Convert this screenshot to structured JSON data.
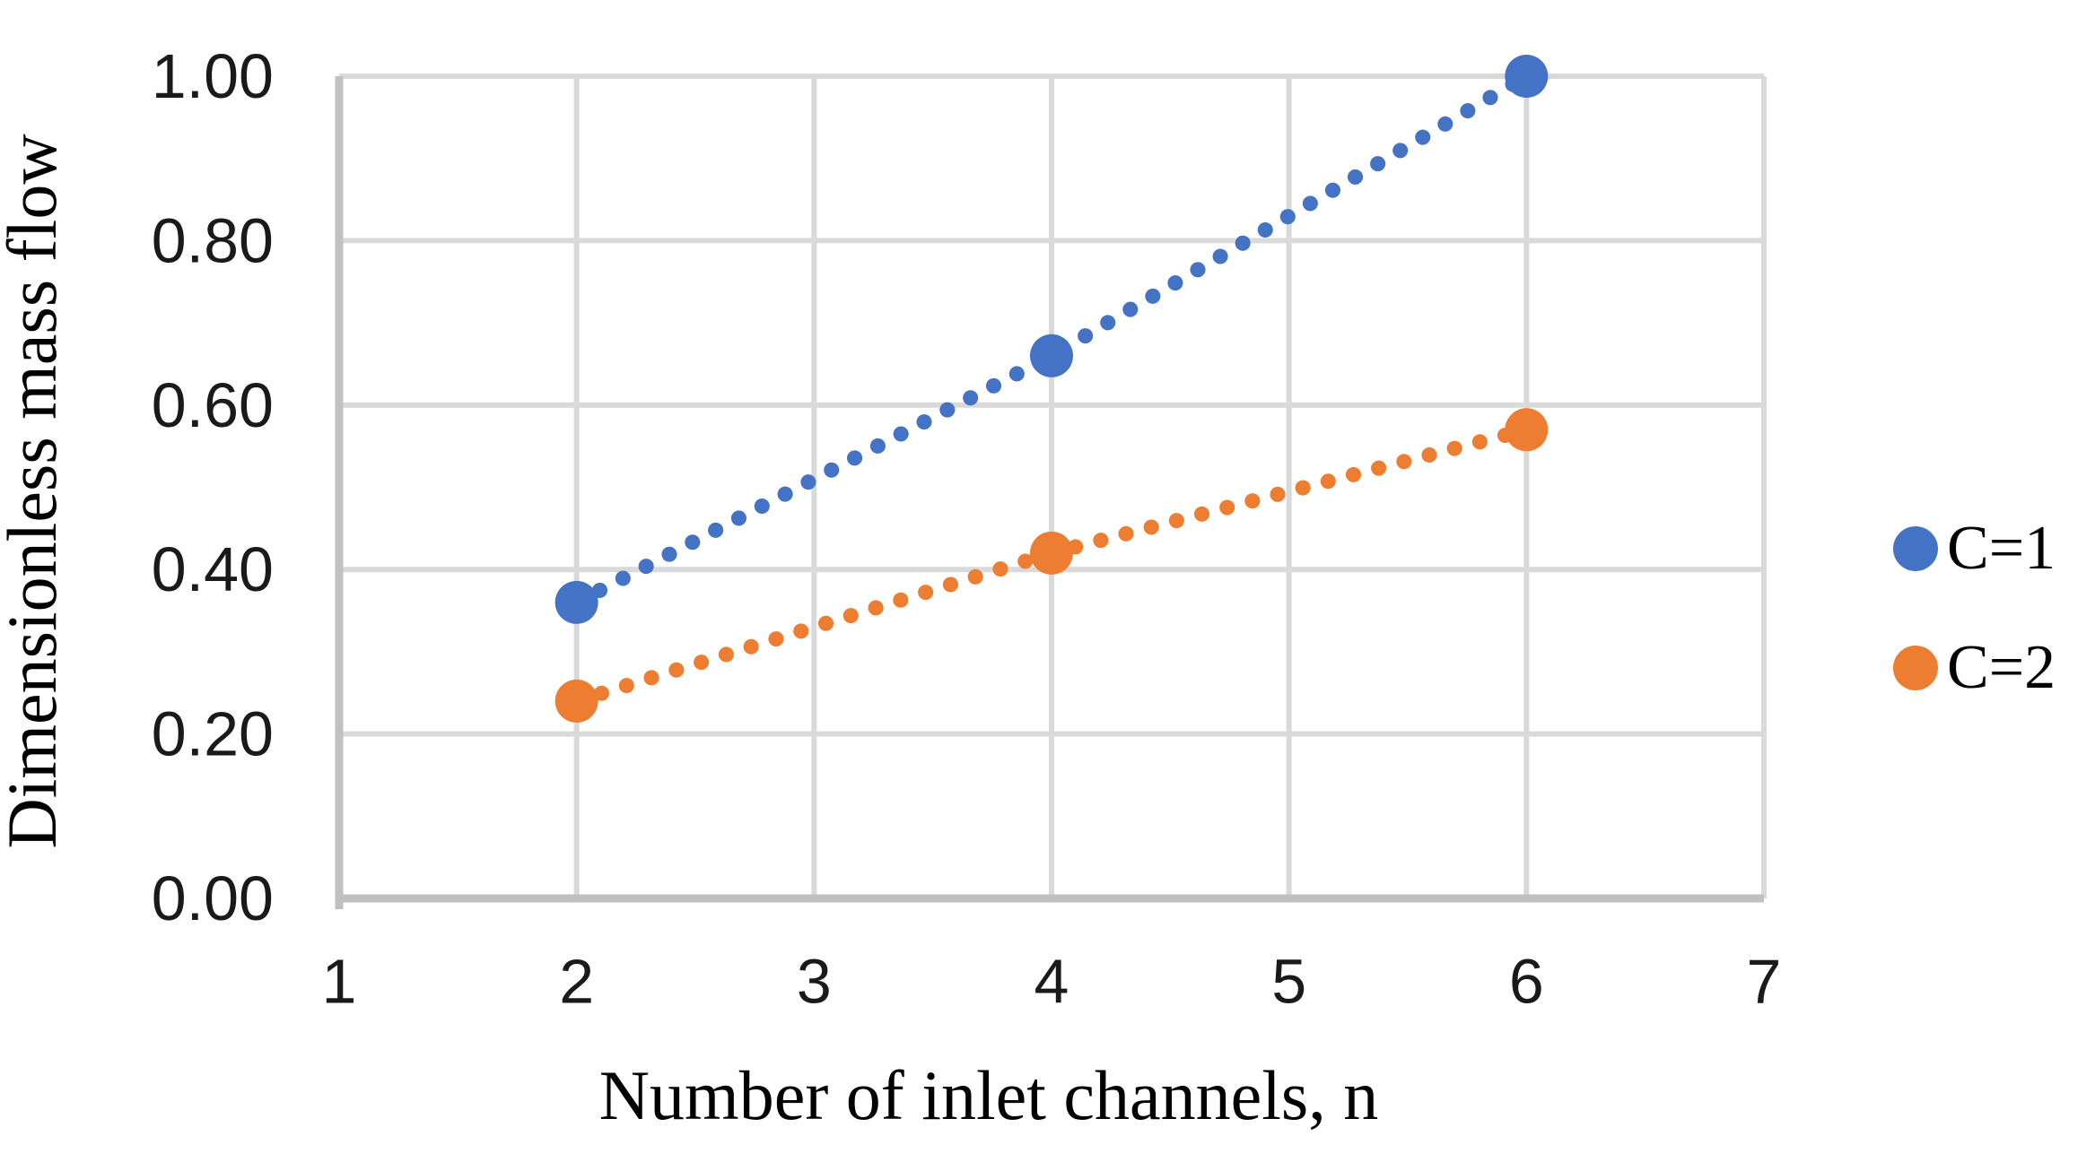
{
  "chart_data": {
    "type": "scatter",
    "title": "",
    "xlabel": "Number of inlet channels, n",
    "ylabel": "Dimensionless mass flow",
    "xlim": [
      1,
      7
    ],
    "ylim": [
      0.0,
      1.0
    ],
    "xtick_labels": [
      "1",
      "2",
      "3",
      "4",
      "5",
      "6",
      "7"
    ],
    "xtick_values": [
      1,
      2,
      3,
      4,
      5,
      6,
      7
    ],
    "ytick_labels": [
      "0.00",
      "0.20",
      "0.40",
      "0.60",
      "0.80",
      "1.00"
    ],
    "ytick_values": [
      0.0,
      0.2,
      0.4,
      0.6,
      0.8,
      1.0
    ],
    "grid": true,
    "grid_color": "#D9D9D9",
    "axis_color": "#C0C0C0",
    "legend_position": "right",
    "marker": "circle",
    "line_style": "dotted",
    "series": [
      {
        "name": "C=1",
        "color": "#4472C4",
        "x": [
          2,
          4,
          6
        ],
        "y": [
          0.36,
          0.66,
          1.0
        ]
      },
      {
        "name": "C=2",
        "color": "#ED7D31",
        "x": [
          2,
          4,
          6
        ],
        "y": [
          0.24,
          0.42,
          0.57
        ]
      }
    ]
  }
}
